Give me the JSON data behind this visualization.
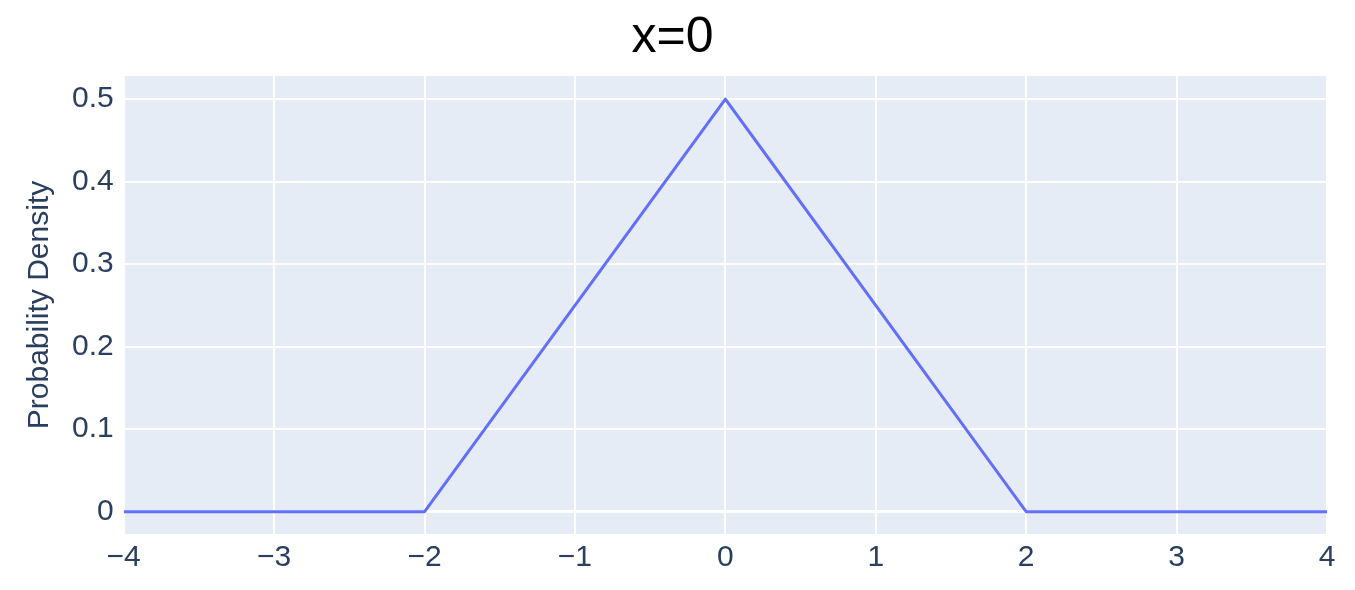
{
  "chart_data": {
    "type": "line",
    "title": "x=0",
    "ylabel": "Probability Density",
    "x": [
      -4,
      -2,
      0,
      2,
      4
    ],
    "series": [
      {
        "color": "#636efa",
        "values": [
          0,
          0,
          0.5,
          0,
          0
        ]
      }
    ],
    "xlim": [
      -4,
      4
    ],
    "ylim": [
      -0.027,
      0.528
    ],
    "xticks": [
      {
        "value": -4,
        "label": "−4"
      },
      {
        "value": -3,
        "label": "−3"
      },
      {
        "value": -2,
        "label": "−2"
      },
      {
        "value": -1,
        "label": "−1"
      },
      0,
      1,
      2,
      3,
      4
    ],
    "yticks": [
      0,
      0.1,
      0.2,
      0.3,
      0.4,
      0.5
    ],
    "grid": true,
    "legend": false,
    "marker": "none",
    "line_style": "solid"
  }
}
